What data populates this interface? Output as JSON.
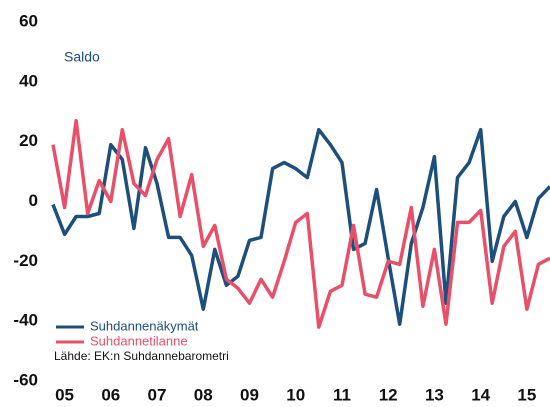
{
  "chart_data": {
    "type": "line",
    "ylabel": "Saldo",
    "source": "Lähde: EK:n Suhdannebarometri",
    "categories": [
      null,
      "05",
      null,
      null,
      null,
      "06",
      null,
      null,
      null,
      "07",
      null,
      null,
      null,
      "08",
      null,
      null,
      null,
      "09",
      null,
      null,
      null,
      "10",
      null,
      null,
      null,
      "11",
      null,
      null,
      null,
      "12",
      null,
      null,
      null,
      "13",
      null,
      null,
      null,
      "14",
      null,
      null,
      null,
      "15",
      null,
      null
    ],
    "series": [
      {
        "name": "Suhdannenäkymät",
        "color": "#1d4f7c",
        "values": [
          -1,
          -11,
          -5,
          -5,
          -4,
          19,
          14,
          -9,
          18,
          6,
          -12,
          -12,
          -18,
          -36,
          -16,
          -28,
          -25,
          -13,
          -12,
          11,
          13,
          11,
          8,
          24,
          19,
          13,
          -16,
          -14,
          4,
          -19,
          -41,
          -14,
          -2,
          15,
          -34,
          8,
          13,
          24,
          -20,
          -5,
          0,
          -12,
          1,
          5
        ]
      },
      {
        "name": "Suhdannetilanne",
        "color": "#e8506a",
        "values": [
          19,
          -2,
          27,
          -4,
          7,
          0,
          24,
          6,
          2,
          14,
          21,
          -5,
          9,
          -15,
          -8,
          -26,
          -29,
          -34,
          -26,
          -32,
          -20,
          -7,
          -4,
          -42,
          -30,
          -28,
          -8,
          -31,
          -32,
          -20,
          -21,
          -2,
          -35,
          -16,
          -41,
          -7,
          -7,
          -3,
          -34,
          -15,
          -10,
          -36,
          -21,
          -19
        ]
      }
    ],
    "ylim": [
      -60,
      60
    ],
    "yticks": [
      -60,
      -40,
      -20,
      0,
      20,
      40,
      60
    ],
    "grid": false,
    "legend": "lower left"
  }
}
